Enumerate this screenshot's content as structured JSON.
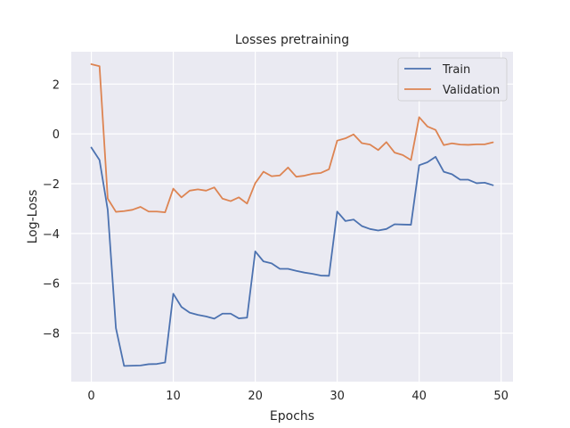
{
  "chart_data": {
    "type": "line",
    "title": "Losses pretraining",
    "xlabel": "Epochs",
    "ylabel": "Log-Loss",
    "xlim": [
      -2.45,
      51.45
    ],
    "ylim": [
      -9.95,
      3.3
    ],
    "xticks": [
      0,
      10,
      20,
      30,
      40,
      50
    ],
    "yticks": [
      -8,
      -6,
      -4,
      -2,
      0,
      2
    ],
    "grid": true,
    "legend_position": "top-right",
    "x": [
      0,
      1,
      2,
      3,
      4,
      5,
      6,
      7,
      8,
      9,
      10,
      11,
      12,
      13,
      14,
      15,
      16,
      17,
      18,
      19,
      20,
      21,
      22,
      23,
      24,
      25,
      26,
      27,
      28,
      29,
      30,
      31,
      32,
      33,
      34,
      35,
      36,
      37,
      38,
      39,
      40,
      41,
      42,
      43,
      44,
      45,
      46,
      47,
      48,
      49
    ],
    "series": [
      {
        "name": "Train",
        "color": "#4c72b0",
        "values": [
          -0.55,
          -1.05,
          -3.05,
          -7.8,
          -9.32,
          -9.31,
          -9.3,
          -9.25,
          -9.24,
          -9.18,
          -6.42,
          -6.95,
          -7.18,
          -7.27,
          -7.33,
          -7.42,
          -7.22,
          -7.22,
          -7.41,
          -7.38,
          -4.72,
          -5.12,
          -5.2,
          -5.42,
          -5.42,
          -5.5,
          -5.57,
          -5.62,
          -5.69,
          -5.7,
          -3.12,
          -3.5,
          -3.44,
          -3.7,
          -3.82,
          -3.88,
          -3.82,
          -3.63,
          -3.64,
          -3.65,
          -1.26,
          -1.14,
          -0.92,
          -1.52,
          -1.62,
          -1.84,
          -1.84,
          -1.98,
          -1.96,
          -2.06
        ]
      },
      {
        "name": "Validation",
        "color": "#dd8452",
        "values": [
          2.8,
          2.72,
          -2.6,
          -3.13,
          -3.1,
          -3.05,
          -2.93,
          -3.12,
          -3.12,
          -3.15,
          -2.2,
          -2.55,
          -2.28,
          -2.23,
          -2.28,
          -2.15,
          -2.6,
          -2.7,
          -2.55,
          -2.8,
          -1.98,
          -1.52,
          -1.7,
          -1.67,
          -1.35,
          -1.72,
          -1.68,
          -1.6,
          -1.57,
          -1.42,
          -0.27,
          -0.18,
          -0.02,
          -0.37,
          -0.43,
          -0.65,
          -0.33,
          -0.75,
          -0.85,
          -1.05,
          0.67,
          0.3,
          0.16,
          -0.45,
          -0.38,
          -0.43,
          -0.44,
          -0.42,
          -0.42,
          -0.34
        ]
      }
    ]
  }
}
